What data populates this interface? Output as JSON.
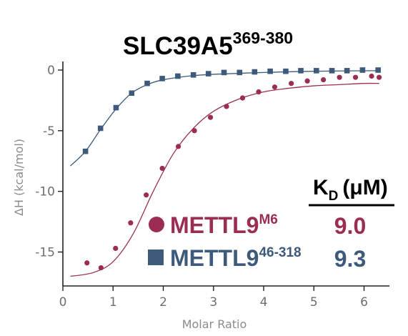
{
  "chart_data": {
    "type": "scatter",
    "title": "SLC39A5",
    "title_superscript": "369-380",
    "xlabel": "Molar Ratio",
    "ylabel": "ΔH (kcal/mol)",
    "xlim": [
      0,
      6.5
    ],
    "ylim": [
      -18,
      0.5
    ],
    "x_ticks": [
      0,
      1,
      2,
      3,
      4,
      5,
      6
    ],
    "y_ticks": [
      0,
      -5,
      -10,
      -15
    ],
    "grid": false,
    "kd_header": {
      "main": "K",
      "sub": "D",
      "unit": "(μM)"
    },
    "series": [
      {
        "name": "METTL9",
        "name_superscript": "M6",
        "marker": "circle",
        "color": "#9b2d55",
        "kd": "9.0",
        "points": [
          {
            "x": 0.48,
            "y": -15.9
          },
          {
            "x": 0.76,
            "y": -16.3
          },
          {
            "x": 1.05,
            "y": -14.7
          },
          {
            "x": 1.35,
            "y": -12.6
          },
          {
            "x": 1.66,
            "y": -10.3
          },
          {
            "x": 1.98,
            "y": -8.1
          },
          {
            "x": 2.3,
            "y": -6.3
          },
          {
            "x": 2.62,
            "y": -5.0
          },
          {
            "x": 2.94,
            "y": -3.9
          },
          {
            "x": 3.26,
            "y": -3.0
          },
          {
            "x": 3.58,
            "y": -2.3
          },
          {
            "x": 3.9,
            "y": -1.8
          },
          {
            "x": 4.22,
            "y": -1.4
          },
          {
            "x": 4.55,
            "y": -1.1
          },
          {
            "x": 4.87,
            "y": -0.9
          },
          {
            "x": 5.19,
            "y": -0.8
          },
          {
            "x": 5.51,
            "y": -0.6
          },
          {
            "x": 5.83,
            "y": -0.6
          },
          {
            "x": 6.15,
            "y": -0.5
          },
          {
            "x": 6.3,
            "y": -0.6
          }
        ],
        "fit": [
          {
            "x": 0.15,
            "y": -17.0
          },
          {
            "x": 0.6,
            "y": -16.7
          },
          {
            "x": 1.0,
            "y": -15.8
          },
          {
            "x": 1.4,
            "y": -13.5
          },
          {
            "x": 1.8,
            "y": -10.0
          },
          {
            "x": 2.2,
            "y": -6.9
          },
          {
            "x": 2.6,
            "y": -4.8
          },
          {
            "x": 3.0,
            "y": -3.4
          },
          {
            "x": 3.5,
            "y": -2.4
          },
          {
            "x": 4.0,
            "y": -1.8
          },
          {
            "x": 4.5,
            "y": -1.5
          },
          {
            "x": 5.0,
            "y": -1.3
          },
          {
            "x": 5.5,
            "y": -1.2
          },
          {
            "x": 6.0,
            "y": -1.1
          },
          {
            "x": 6.3,
            "y": -1.1
          }
        ]
      },
      {
        "name": "METTL9",
        "name_superscript": "46-318",
        "marker": "square",
        "color": "#3d5a7b",
        "kd": "9.3",
        "points": [
          {
            "x": 0.45,
            "y": -6.7
          },
          {
            "x": 0.75,
            "y": -4.8
          },
          {
            "x": 1.06,
            "y": -3.1
          },
          {
            "x": 1.37,
            "y": -1.9
          },
          {
            "x": 1.68,
            "y": -1.1
          },
          {
            "x": 1.98,
            "y": -0.7
          },
          {
            "x": 2.29,
            "y": -0.5
          },
          {
            "x": 2.6,
            "y": -0.4
          },
          {
            "x": 2.9,
            "y": -0.3
          },
          {
            "x": 3.21,
            "y": -0.2
          },
          {
            "x": 3.52,
            "y": -0.2
          },
          {
            "x": 3.82,
            "y": -0.15
          },
          {
            "x": 4.13,
            "y": -0.1
          },
          {
            "x": 4.44,
            "y": -0.1
          },
          {
            "x": 4.74,
            "y": -0.05
          },
          {
            "x": 5.05,
            "y": -0.05
          },
          {
            "x": 5.36,
            "y": -0.05
          },
          {
            "x": 5.66,
            "y": -0.05
          },
          {
            "x": 5.97,
            "y": 0.0
          },
          {
            "x": 6.28,
            "y": 0.0
          }
        ],
        "fit": [
          {
            "x": 0.15,
            "y": -7.9
          },
          {
            "x": 0.45,
            "y": -6.7
          },
          {
            "x": 0.75,
            "y": -4.9
          },
          {
            "x": 1.06,
            "y": -3.2
          },
          {
            "x": 1.37,
            "y": -1.9
          },
          {
            "x": 1.68,
            "y": -1.2
          },
          {
            "x": 2.0,
            "y": -0.8
          },
          {
            "x": 2.5,
            "y": -0.5
          },
          {
            "x": 3.0,
            "y": -0.35
          },
          {
            "x": 4.0,
            "y": -0.2
          },
          {
            "x": 5.0,
            "y": -0.1
          },
          {
            "x": 6.3,
            "y": -0.05
          }
        ]
      }
    ]
  }
}
